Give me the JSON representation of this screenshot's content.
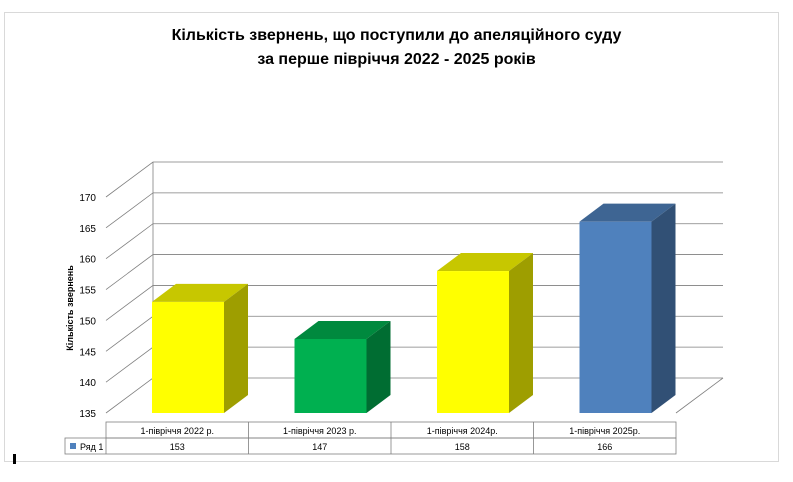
{
  "chart_data": {
    "type": "bar",
    "title": "Кількість звернень, що поступили до апеляційного суду",
    "subtitle": "за перше півріччя 2022 - 2025 років",
    "ylabel": "Кількість звернень",
    "xlabel": "",
    "categories": [
      "1-півріччя 2022 р.",
      "1-півріччя 2023 р.",
      "1-півріччя 2024р.",
      "1-півріччя 2025р."
    ],
    "series": [
      {
        "name": "Ряд 1",
        "values": [
          153,
          147,
          158,
          166
        ]
      }
    ],
    "bar_colors": [
      "#ffff00",
      "#00b050",
      "#ffff00",
      "#4f81bd"
    ],
    "legend_marker_color": "#4f81bd",
    "ylim": [
      135,
      170
    ],
    "yticks": [
      135,
      140,
      145,
      150,
      155,
      160,
      165,
      170
    ],
    "grid": true,
    "data_table": true,
    "style": "3d-column"
  }
}
